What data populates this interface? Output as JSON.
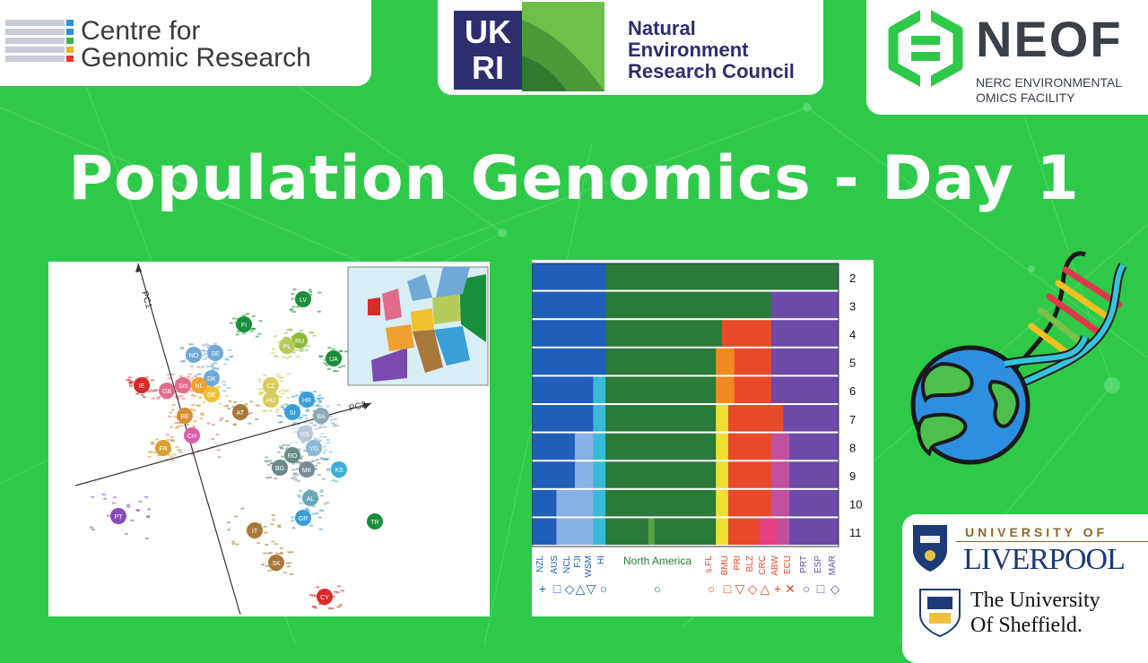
{
  "logos": {
    "cgr": {
      "line1": "Centre for",
      "line2": "Genomic Research"
    },
    "ukri": {
      "mark_top": "UK",
      "mark_bottom": "RI",
      "line1": "Natural",
      "line2": "Environment",
      "line3": "Research Council"
    },
    "neof": {
      "name": "NEOF",
      "line1": "NERC ENVIRONMENTAL",
      "line2": "OMICS FACILITY"
    },
    "liverpool": {
      "top": "UNIVERSITY OF",
      "name": "LIVERPOOL"
    },
    "sheffield": {
      "line1": "The University",
      "line2": "Of Sheffield."
    }
  },
  "title": "Population Genomics - Day 1",
  "pca_figure": {
    "axis1": "PC1",
    "axis2": "PC2",
    "clusters": [
      {
        "code": "LV",
        "color": "#1a8f3a"
      },
      {
        "code": "FI",
        "color": "#1a8f3a"
      },
      {
        "code": "RU",
        "color": "#8fba3a"
      },
      {
        "code": "PL",
        "color": "#b5cc5c"
      },
      {
        "code": "UA",
        "color": "#1a8f3a"
      },
      {
        "code": "NO",
        "color": "#6fa9d8"
      },
      {
        "code": "SE",
        "color": "#6fa9d8"
      },
      {
        "code": "DK",
        "color": "#6fa9d8"
      },
      {
        "code": "IE",
        "color": "#d92a2a"
      },
      {
        "code": "GB",
        "color": "#e06b8a"
      },
      {
        "code": "Sct",
        "color": "#e06b8a"
      },
      {
        "code": "NL",
        "color": "#f0a030"
      },
      {
        "code": "DE",
        "color": "#f0c030"
      },
      {
        "code": "CZ",
        "color": "#d6cc5a"
      },
      {
        "code": "HU",
        "color": "#d6cc5a"
      },
      {
        "code": "HR",
        "color": "#3a9fd6"
      },
      {
        "code": "AT",
        "color": "#a8783a"
      },
      {
        "code": "SI",
        "color": "#3a9fd6"
      },
      {
        "code": "BA",
        "color": "#8aa8b8"
      },
      {
        "code": "BE",
        "color": "#d89030"
      },
      {
        "code": "CH",
        "color": "#d860a8"
      },
      {
        "code": "RS",
        "color": "#b8c8d8"
      },
      {
        "code": "RO",
        "color": "#6a8a8a"
      },
      {
        "code": "YG",
        "color": "#8ab8d8"
      },
      {
        "code": "FR",
        "color": "#d8a030"
      },
      {
        "code": "BG",
        "color": "#6a8a8a"
      },
      {
        "code": "MK",
        "color": "#7a8a9a"
      },
      {
        "code": "KS",
        "color": "#3ab0d8"
      },
      {
        "code": "AL",
        "color": "#6aa8b8"
      },
      {
        "code": "GR",
        "color": "#3a9fd6"
      },
      {
        "code": "TR",
        "color": "#1a8f3a"
      },
      {
        "code": "PT",
        "color": "#8a4ab8"
      },
      {
        "code": "IT",
        "color": "#a8783a"
      },
      {
        "code": "SK",
        "color": "#a8783a"
      },
      {
        "code": "CY",
        "color": "#d92a2a"
      }
    ]
  },
  "structure_figure": {
    "k_values": [
      "2",
      "3",
      "4",
      "5",
      "6",
      "7",
      "8",
      "9",
      "10",
      "11"
    ],
    "groups": [
      "NZL",
      "AUS",
      "NCL",
      "FJI",
      "WSM",
      "HI",
      "North America",
      "s.FL",
      "BMU",
      "PRI",
      "BLZ",
      "CRC",
      "ABW",
      "ECU",
      "PRT",
      "ESP",
      "MAR"
    ],
    "symbols": [
      "+",
      "□",
      "◇",
      "△",
      "▽",
      "○",
      "○",
      "○",
      "□",
      "▽",
      "◇",
      "△",
      "+",
      "✕",
      "○",
      "□",
      "◇"
    ]
  }
}
